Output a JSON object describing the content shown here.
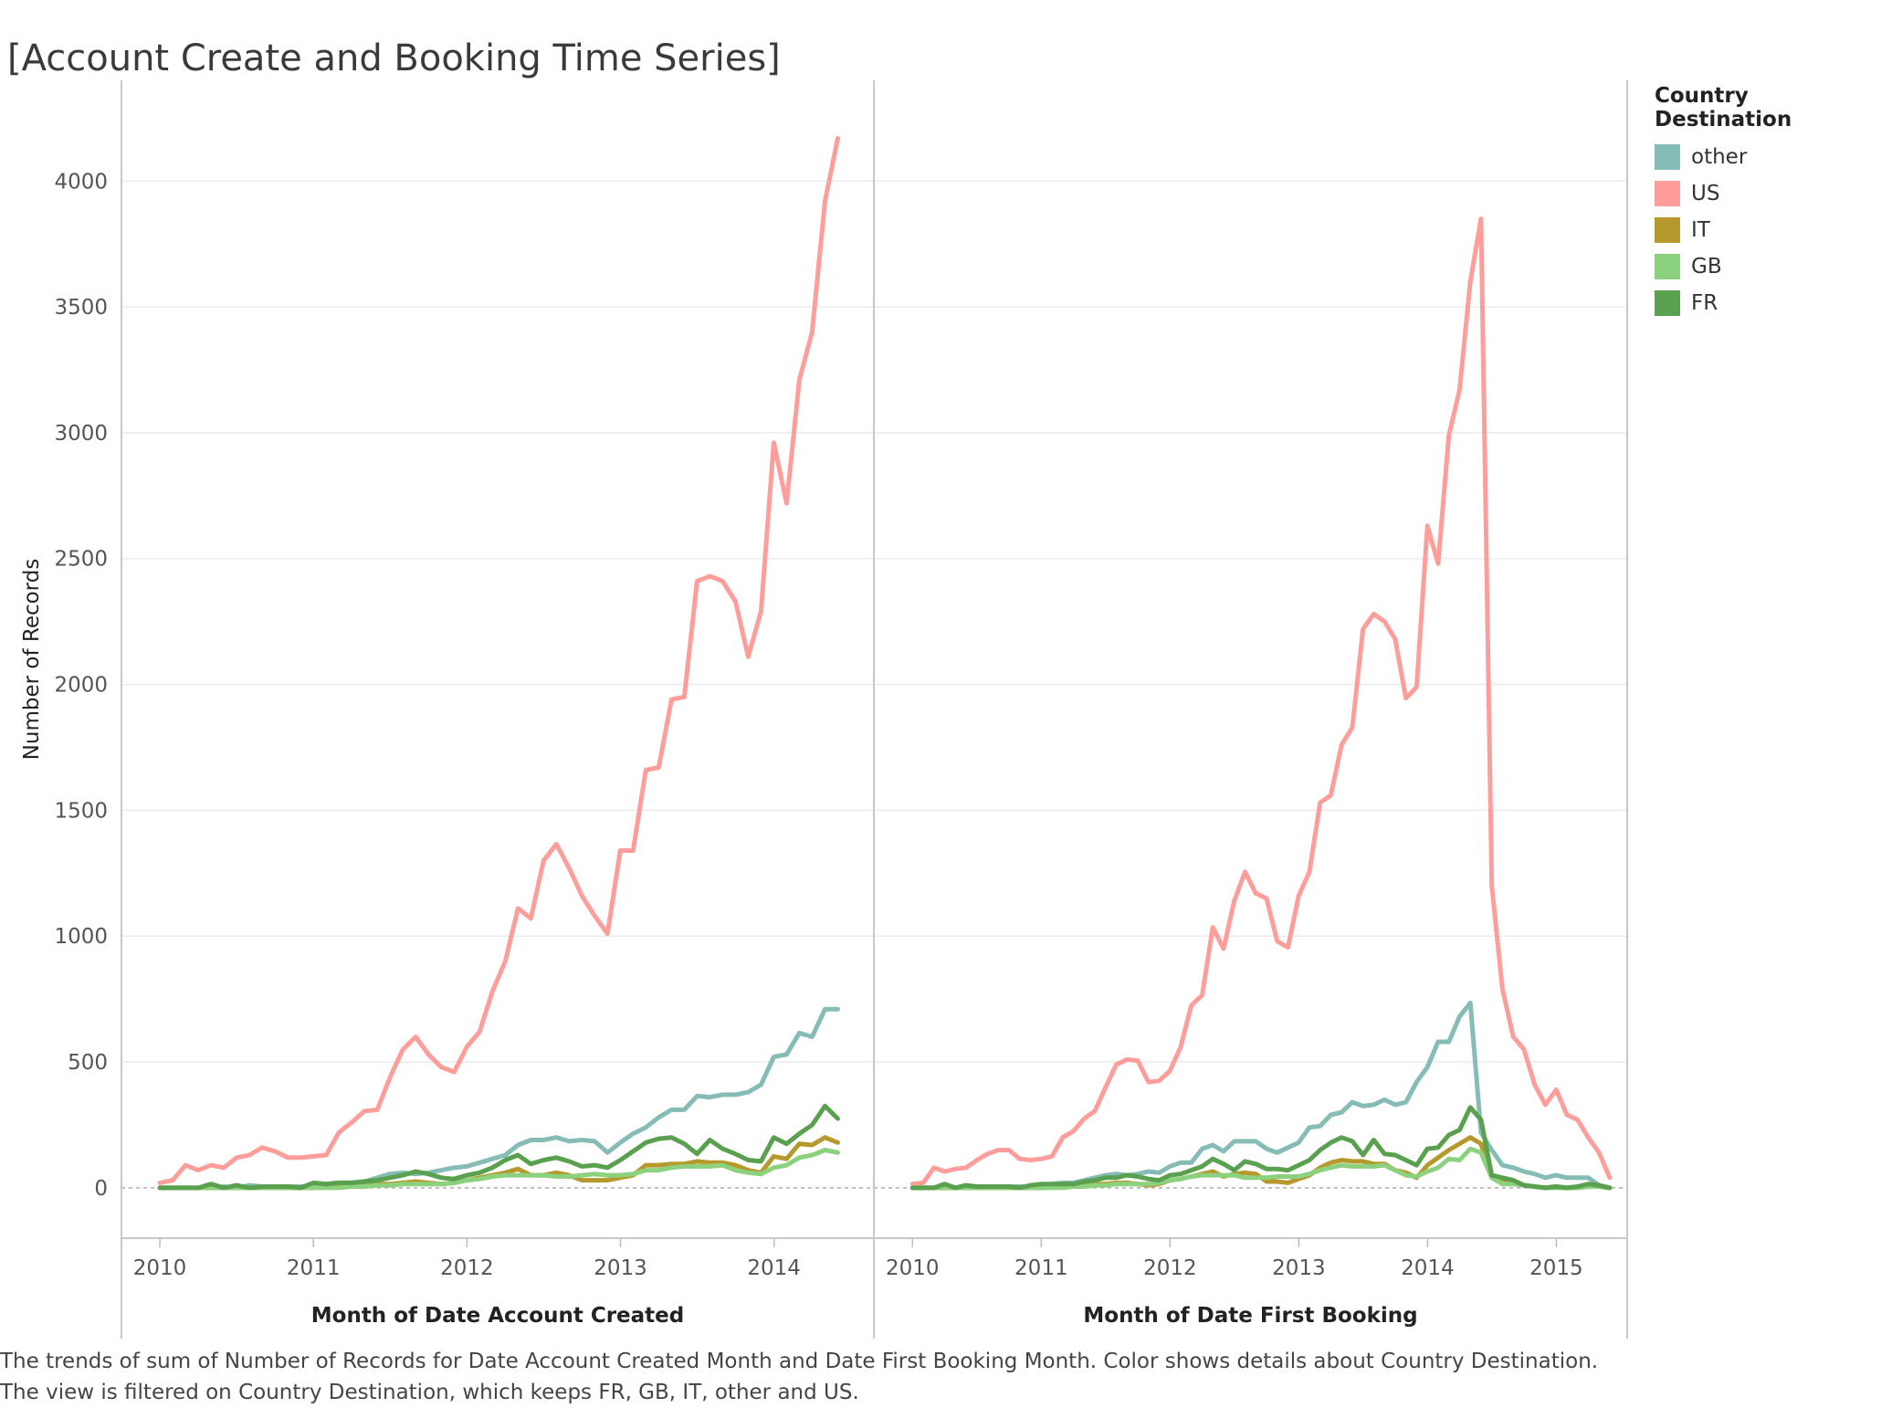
{
  "title": "[Account Create and Booking Time Series]",
  "caption": "The trends of sum of Number of Records for Date Account Created Month and Date First Booking Month.  Color shows details about Country Destination. The view is filtered on Country Destination, which keeps FR, GB, IT, other and US.",
  "legend": {
    "title": "Country Destination",
    "items": [
      {
        "label": "other",
        "color": "#86bcb6"
      },
      {
        "label": "US",
        "color": "#ff9d9a"
      },
      {
        "label": "IT",
        "color": "#b6992d"
      },
      {
        "label": "GB",
        "color": "#8cd17d"
      },
      {
        "label": "FR",
        "color": "#59a14f"
      }
    ]
  },
  "chart_data": [
    {
      "type": "line",
      "title": "",
      "xlabel": "Month of Date Account Created",
      "ylabel": "Number of Records",
      "ylim": [
        -200,
        4400
      ],
      "xlim": [
        2009.75,
        2014.65
      ],
      "yticks": [
        0,
        500,
        1000,
        1500,
        2000,
        2500,
        3000,
        3500,
        4000
      ],
      "xticks": [
        2010,
        2011,
        2012,
        2013,
        2014
      ],
      "grid": true,
      "zero_line": "dashed",
      "x_start": 2010.0,
      "x_step": 0.0833,
      "series": [
        {
          "name": "other",
          "color": "#86bcb6",
          "values": [
            0,
            0,
            0,
            0,
            0,
            5,
            0,
            10,
            5,
            5,
            5,
            5,
            10,
            15,
            20,
            20,
            25,
            40,
            55,
            60,
            55,
            60,
            70,
            80,
            85,
            100,
            115,
            130,
            170,
            190,
            190,
            200,
            185,
            190,
            185,
            140,
            180,
            215,
            240,
            280,
            310,
            310,
            365,
            360,
            370,
            370,
            380,
            410,
            520,
            530,
            615,
            600,
            710,
            710
          ]
        },
        {
          "name": "US",
          "color": "#ff9d9a",
          "values": [
            20,
            30,
            90,
            70,
            90,
            80,
            120,
            130,
            160,
            145,
            120,
            120,
            125,
            130,
            220,
            260,
            305,
            310,
            440,
            550,
            600,
            530,
            480,
            460,
            560,
            620,
            780,
            900,
            1110,
            1070,
            1300,
            1365,
            1270,
            1160,
            1080,
            1010,
            1340,
            1340,
            1660,
            1670,
            1940,
            1950,
            2410,
            2430,
            2410,
            2330,
            2110,
            2290,
            2960,
            2720,
            3210,
            3400,
            3920,
            4170
          ]
        },
        {
          "name": "IT",
          "color": "#b6992d",
          "values": [
            0,
            0,
            0,
            0,
            0,
            0,
            0,
            0,
            0,
            0,
            0,
            0,
            0,
            5,
            5,
            10,
            10,
            15,
            15,
            20,
            25,
            20,
            15,
            20,
            30,
            40,
            50,
            60,
            75,
            50,
            50,
            60,
            50,
            30,
            30,
            30,
            40,
            50,
            90,
            90,
            95,
            95,
            105,
            100,
            100,
            90,
            70,
            60,
            125,
            115,
            175,
            170,
            200,
            180
          ]
        },
        {
          "name": "GB",
          "color": "#8cd17d",
          "values": [
            0,
            0,
            0,
            0,
            0,
            0,
            0,
            0,
            0,
            0,
            0,
            0,
            0,
            0,
            0,
            5,
            5,
            10,
            10,
            15,
            15,
            15,
            15,
            20,
            30,
            35,
            45,
            50,
            50,
            50,
            50,
            45,
            45,
            50,
            55,
            50,
            50,
            55,
            70,
            70,
            80,
            85,
            85,
            85,
            90,
            70,
            60,
            55,
            80,
            90,
            120,
            130,
            150,
            140
          ]
        },
        {
          "name": "FR",
          "color": "#59a14f",
          "values": [
            0,
            0,
            0,
            0,
            15,
            0,
            10,
            0,
            5,
            5,
            5,
            0,
            20,
            15,
            20,
            20,
            25,
            30,
            40,
            50,
            65,
            55,
            40,
            35,
            50,
            60,
            80,
            110,
            130,
            95,
            110,
            120,
            105,
            85,
            90,
            80,
            110,
            145,
            180,
            195,
            200,
            175,
            135,
            190,
            155,
            135,
            110,
            105,
            200,
            175,
            215,
            250,
            325,
            275
          ]
        }
      ]
    },
    {
      "type": "line",
      "title": "",
      "xlabel": "Month of Date First Booking",
      "ylabel": "Number of Records",
      "ylim": [
        -200,
        4400
      ],
      "xlim": [
        2009.7,
        2015.55
      ],
      "yticks": [
        0,
        500,
        1000,
        1500,
        2000,
        2500,
        3000,
        3500,
        4000
      ],
      "xticks": [
        2010,
        2011,
        2012,
        2013,
        2014,
        2015
      ],
      "grid": true,
      "zero_line": "dashed",
      "x_start": 2010.0,
      "x_step": 0.0833,
      "series": [
        {
          "name": "other",
          "color": "#86bcb6",
          "values": [
            0,
            0,
            0,
            0,
            0,
            0,
            0,
            5,
            5,
            5,
            5,
            5,
            10,
            15,
            20,
            20,
            30,
            40,
            50,
            55,
            50,
            55,
            65,
            60,
            85,
            100,
            100,
            155,
            170,
            145,
            185,
            185,
            185,
            155,
            140,
            160,
            180,
            240,
            245,
            290,
            300,
            340,
            325,
            330,
            350,
            330,
            340,
            420,
            480,
            580,
            580,
            680,
            735,
            220,
            150,
            90,
            80,
            65,
            55,
            40,
            50,
            40,
            40,
            40,
            10,
            0
          ]
        },
        {
          "name": "US",
          "color": "#ff9d9a",
          "values": [
            15,
            20,
            80,
            65,
            75,
            80,
            110,
            135,
            150,
            150,
            115,
            110,
            115,
            125,
            200,
            225,
            275,
            305,
            400,
            490,
            510,
            505,
            420,
            425,
            465,
            560,
            725,
            765,
            1035,
            950,
            1140,
            1255,
            1170,
            1150,
            980,
            955,
            1160,
            1255,
            1530,
            1560,
            1760,
            1830,
            2220,
            2280,
            2250,
            2180,
            1945,
            1990,
            2630,
            2480,
            2990,
            3170,
            3600,
            3850,
            1200,
            790,
            600,
            550,
            410,
            330,
            390,
            290,
            270,
            200,
            140,
            40
          ]
        },
        {
          "name": "IT",
          "color": "#b6992d",
          "values": [
            0,
            0,
            0,
            0,
            0,
            0,
            0,
            0,
            0,
            0,
            0,
            0,
            0,
            5,
            5,
            10,
            15,
            15,
            15,
            20,
            20,
            15,
            10,
            15,
            30,
            35,
            45,
            55,
            65,
            45,
            55,
            60,
            55,
            25,
            25,
            20,
            35,
            50,
            80,
            100,
            110,
            105,
            105,
            95,
            95,
            70,
            60,
            40,
            90,
            120,
            150,
            175,
            200,
            175,
            40,
            30,
            30,
            10,
            5,
            0,
            5,
            0,
            0,
            5,
            5,
            0
          ]
        },
        {
          "name": "GB",
          "color": "#8cd17d",
          "values": [
            0,
            0,
            0,
            0,
            0,
            0,
            0,
            0,
            0,
            0,
            0,
            0,
            0,
            0,
            0,
            5,
            5,
            10,
            10,
            15,
            15,
            15,
            15,
            20,
            30,
            35,
            45,
            50,
            50,
            50,
            50,
            40,
            40,
            40,
            45,
            45,
            45,
            55,
            70,
            80,
            90,
            85,
            85,
            85,
            90,
            70,
            50,
            45,
            65,
            80,
            115,
            110,
            155,
            140,
            40,
            15,
            15,
            10,
            5,
            0,
            0,
            0,
            0,
            5,
            5,
            0
          ]
        },
        {
          "name": "FR",
          "color": "#59a14f",
          "values": [
            0,
            0,
            0,
            15,
            0,
            10,
            5,
            5,
            5,
            5,
            0,
            10,
            15,
            15,
            15,
            15,
            25,
            30,
            40,
            40,
            50,
            45,
            35,
            30,
            50,
            55,
            70,
            85,
            115,
            95,
            70,
            105,
            95,
            75,
            75,
            70,
            90,
            110,
            150,
            180,
            200,
            185,
            130,
            190,
            135,
            130,
            110,
            90,
            155,
            160,
            210,
            230,
            320,
            270,
            50,
            40,
            30,
            10,
            5,
            0,
            5,
            0,
            5,
            15,
            10,
            0
          ]
        }
      ]
    }
  ]
}
